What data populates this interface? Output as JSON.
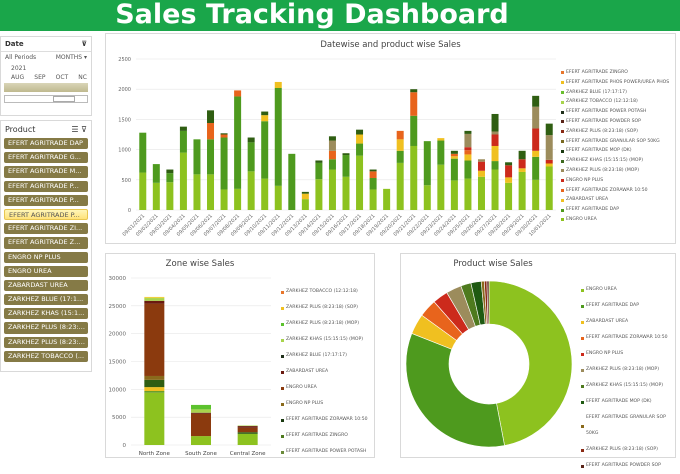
{
  "title": "Sales Tracking Dashboard",
  "date_slicer": {
    "label": "Date",
    "periods": "All Periods",
    "granularity": "MONTHS",
    "year": "2021",
    "months": [
      "AUG",
      "SEP",
      "OCT",
      "NC"
    ]
  },
  "product_slicer": {
    "label": "Product",
    "selected_index": 5,
    "items": [
      "EFERT AGRITRADE DAP",
      "EFERT AGRITRADE G...",
      "EFERT AGRITRADE M...",
      "EFERT AGRITRADE P...",
      "EFERT AGRITRADE P...",
      "EFERT AGRITRADE P...",
      "EFERT AGRITRADE ZI...",
      "EFERT AGRITRADE Z...",
      "ENGRO NP PLUS",
      "ENGRO UREA",
      "ZABARDAST UREA",
      "ZARKHEZ BLUE (17:1...",
      "ZARKHEZ KHAS (15:1...",
      "ZARKHEZ PLUS (8:23:...",
      "ZARKHEZ PLUS (8:23:...",
      "ZARKHEZ TOBACCO (..."
    ]
  },
  "chart_data": [
    {
      "type": "bar",
      "stacked": true,
      "title": "Datewise and product wise Sales",
      "ylim": [
        0,
        2500
      ],
      "yticks": [
        0,
        500,
        1000,
        1500,
        2000,
        2500
      ],
      "grid": true,
      "legend_position": "right",
      "categories": [
        "09/01/2021",
        "09/02/2021",
        "09/03/2021",
        "09/04/2021",
        "09/05/2021",
        "09/06/2021",
        "09/07/2021",
        "09/08/2021",
        "09/09/2021",
        "09/10/2021",
        "09/11/2021",
        "09/12/2021",
        "09/13/2021",
        "09/14/2021",
        "09/15/2021",
        "09/16/2021",
        "09/17/2021",
        "09/18/2021",
        "09/19/2021",
        "09/20/2021",
        "09/21/2021",
        "09/22/2021",
        "09/23/2021",
        "09/24/2021",
        "09/25/2021",
        "09/26/2021",
        "09/27/2021",
        "09/28/2021",
        "09/29/2021",
        "09/30/2021",
        "10/01/2021"
      ],
      "series": [
        {
          "name": "ENGRO UREA",
          "color": "#8dc21f",
          "values": [
            620,
            450,
            460,
            950,
            590,
            590,
            340,
            350,
            640,
            520,
            400,
            0,
            180,
            510,
            670,
            550,
            900,
            340,
            350,
            780,
            1060,
            410,
            750,
            490,
            520,
            550,
            670,
            450,
            630,
            500,
            720
          ]
        },
        {
          "name": "EFERT AGRITRADE DAP",
          "color": "#4e9a1e",
          "values": [
            660,
            310,
            150,
            360,
            580,
            580,
            860,
            1530,
            480,
            950,
            1620,
            930,
            0,
            270,
            170,
            360,
            200,
            190,
            0,
            200,
            500,
            730,
            400,
            360,
            300,
            0,
            140,
            0,
            0,
            380,
            0
          ]
        },
        {
          "name": "ZABARDAST UREA",
          "color": "#f0c020",
          "values": [
            0,
            0,
            0,
            0,
            0,
            0,
            0,
            0,
            0,
            100,
            100,
            0,
            90,
            0,
            0,
            0,
            150,
            0,
            0,
            190,
            0,
            0,
            40,
            40,
            100,
            100,
            250,
            90,
            60,
            100,
            50
          ]
        },
        {
          "name": "EFERT AGRITRADE ZORAWAR 10:50",
          "color": "#e8641c",
          "values": [
            0,
            0,
            0,
            0,
            0,
            270,
            50,
            100,
            0,
            0,
            0,
            0,
            0,
            0,
            140,
            0,
            0,
            110,
            0,
            140,
            390,
            0,
            0,
            40,
            70,
            0,
            0,
            0,
            0,
            0,
            0
          ]
        },
        {
          "name": "ENGRO NP PLUS",
          "color": "#cc2a1c",
          "values": [
            0,
            0,
            0,
            0,
            0,
            0,
            0,
            0,
            0,
            0,
            0,
            0,
            0,
            0,
            0,
            0,
            0,
            0,
            0,
            0,
            0,
            0,
            0,
            0,
            50,
            150,
            190,
            200,
            150,
            370,
            60
          ]
        },
        {
          "name": "ZARKHEZ PLUS (8:23:18) (MOP)",
          "color": "#9c8c5c",
          "values": [
            0,
            0,
            0,
            0,
            0,
            0,
            0,
            0,
            0,
            0,
            0,
            0,
            0,
            0,
            170,
            0,
            0,
            0,
            0,
            0,
            0,
            0,
            0,
            0,
            220,
            40,
            50,
            0,
            0,
            360,
            410
          ]
        },
        {
          "name": "ZARKHEZ KHAS (15:15:15) (MOP)",
          "color": "#2f5e12",
          "values": [
            0,
            0,
            60,
            70,
            0,
            210,
            20,
            0,
            80,
            60,
            0,
            0,
            30,
            40,
            70,
            30,
            80,
            30,
            0,
            0,
            50,
            0,
            0,
            50,
            50,
            0,
            290,
            50,
            140,
            180,
            190
          ]
        }
      ],
      "legend": [
        "EFERT AGRITRADE ZINGRO",
        "EFERT AGRITRADE PHOS POWER/UREA PHOS",
        "ZARKHEZ BLUE (17:17:17)",
        "ZARKHEZ TOBACCO (12:12:18)",
        "EFERT AGRITRADE POWER POTASH",
        "EFERT AGRITRADE POWDER SOP",
        "ZARKHEZ PLUS (8:23:18) (SOP)",
        "EFERT AGRITRADE GRANULAR SOP 50KG",
        "EFERT AGRITRADE MOP (DK)",
        "ZARKHEZ KHAS (15:15:15) (MOP)",
        "ZARKHEZ PLUS (8:23:18) (MOP)",
        "ENGRO NP PLUS",
        "EFERT AGRITRADE ZORAWAR 10:50",
        "ZABARDAST UREA",
        "EFERT AGRITRADE DAP",
        "ENGRO UREA"
      ],
      "legend_colors": [
        "#e8762c",
        "#f0c020",
        "#6abf2e",
        "#a8d44c",
        "#1f2f1a",
        "#5a2418",
        "#8a2a14",
        "#7a6a22",
        "#1a3a10",
        "#3e6a1e",
        "#9c8c5c",
        "#cc2a1c",
        "#e8641c",
        "#f0c020",
        "#4e9a1e",
        "#8dc21f"
      ]
    },
    {
      "type": "bar",
      "stacked": true,
      "title": "Zone wise Sales",
      "ylim": [
        0,
        30000
      ],
      "yticks": [
        0,
        5000,
        10000,
        15000,
        20000,
        25000,
        30000
      ],
      "grid": true,
      "legend_position": "right",
      "categories": [
        "North Zone",
        "South Zone",
        "Central Zone"
      ],
      "series": [
        {
          "name": "EFERT AGRITRADE POWER POTASH",
          "color": "#8dc21f",
          "values": [
            9400,
            1600,
            2000
          ]
        },
        {
          "name": "EFERT AGRITRADE ZINGRO",
          "color": "#6a9e2a",
          "values": [
            300,
            0,
            0
          ]
        },
        {
          "name": "EFERT AGRITRADE ZORAWAR 10:50",
          "color": "#f0c020",
          "values": [
            700,
            0,
            0
          ]
        },
        {
          "name": "ENGRO NP PLUS",
          "color": "#2f5e12",
          "values": [
            1300,
            0,
            300
          ]
        },
        {
          "name": "ENGRO UREA",
          "color": "#8a6a1c",
          "values": [
            700,
            0,
            0
          ]
        },
        {
          "name": "ZABARDAST UREA",
          "color": "#8b3a0e",
          "values": [
            13000,
            4000,
            800
          ]
        },
        {
          "name": "ZARKHEZ BLUE (17:17:17)",
          "color": "#6a1a10",
          "values": [
            500,
            200,
            300
          ]
        },
        {
          "name": "ZARKHEZ KHAS (15:15:15) (MOP)",
          "color": "#a8d44c",
          "values": [
            500,
            600,
            100
          ]
        },
        {
          "name": "ZARKHEZ PLUS (8:23:18) (MOP)",
          "color": "#5cc22e",
          "values": [
            0,
            800,
            0
          ]
        },
        {
          "name": "ZARKHEZ PLUS (8:23:18) (SOP)",
          "color": "#f0d040",
          "values": [
            200,
            0,
            0
          ]
        },
        {
          "name": "ZARKHEZ TOBACCO (12:12:18)",
          "color": "#e8762c",
          "values": [
            0,
            0,
            0
          ]
        }
      ],
      "legend": [
        "ZARKHEZ TOBACCO (12:12:18)",
        "ZARKHEZ PLUS (8:23:18) (SOP)",
        "ZARKHEZ PLUS (8:23:18) (MOP)",
        "ZARKHEZ KHAS (15:15:15) (MOP)",
        "ZARKHEZ BLUE (17:17:17)",
        "ZABARDAST UREA",
        "ENGRO UREA",
        "ENGRO NP PLUS",
        "EFERT AGRITRADE ZORAWAR 10:50",
        "EFERT AGRITRADE ZINGRO",
        "EFERT AGRITRADE POWER POTASH"
      ],
      "legend_colors": [
        "#e8762c",
        "#f0c020",
        "#5cc22e",
        "#a8d44c",
        "#1f2f1a",
        "#6a1a10",
        "#8b3a0e",
        "#8a6a1c",
        "#1a3a10",
        "#4e7a1e",
        "#6a8a3a"
      ]
    },
    {
      "type": "pie",
      "donut": true,
      "title": "Product wise Sales",
      "legend_position": "right",
      "labels": [
        "ENGRO UREA",
        "EFERT AGRITRADE DAP",
        "ZABARDAST UREA",
        "EFERT AGRITRADE ZORAWAR 10:50",
        "ENGRO NP PLUS",
        "ZARKHEZ PLUS (8:23:18) (MOP)",
        "ZARKHEZ KHAS (15:15:15) (MOP)",
        "EFERT AGRITRADE MOP (DK)",
        "EFERT AGRITRADE GRANULAR SOP 50KG",
        "ZARKHEZ PLUS (8:23:18) (SOP)",
        "EFERT AGRITRADE POWDER SOP"
      ],
      "values": [
        47,
        34,
        4,
        3.5,
        3,
        3,
        2,
        2,
        0.6,
        0.5,
        0.4
      ],
      "colors": [
        "#8dc21f",
        "#4e9a1e",
        "#f0c020",
        "#e8641c",
        "#cc2a1c",
        "#9c8c5c",
        "#4e7a1e",
        "#1f5a12",
        "#8a6a1c",
        "#8a2a14",
        "#5a2418"
      ]
    }
  ]
}
